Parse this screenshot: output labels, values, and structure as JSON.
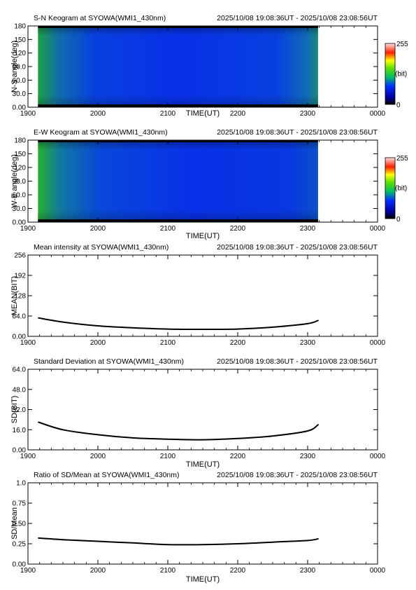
{
  "chart_data": [
    {
      "type": "heatmap",
      "title": "S-N Keogram at SYOWA(WMI1_430nm)",
      "time_range": "2025/10/08 19:08:36UT - 2025/10/08 23:08:56UT",
      "xlabel": "TIME(UT)",
      "ylabel": "N-S angle(deg)",
      "x_ticks": [
        "1900",
        "2000",
        "2100",
        "2200",
        "2300",
        "0000"
      ],
      "y_ticks": [
        "0.00",
        "30.0",
        "60.0",
        "90.0",
        "120",
        "150",
        "180"
      ],
      "ylim": [
        0,
        180
      ],
      "colorbar": {
        "max_label": "255",
        "unit_label": "(bit)",
        "min_label": "0"
      },
      "data_coverage_hours": [
        19.143,
        23.149
      ]
    },
    {
      "type": "heatmap",
      "title": "E-W Keogram at SYOWA(WMI1_430nm)",
      "time_range": "2025/10/08 19:08:36UT - 2025/10/08 23:08:56UT",
      "xlabel": "TIME(UT)",
      "ylabel": "W-E angle(deg)",
      "x_ticks": [
        "1900",
        "2000",
        "2100",
        "2200",
        "2300",
        "0000"
      ],
      "y_ticks": [
        "0.00",
        "30.0",
        "60.0",
        "90.0",
        "120",
        "150",
        "180"
      ],
      "ylim": [
        0,
        180
      ],
      "colorbar": {
        "max_label": "255",
        "unit_label": "(bit)",
        "min_label": "0"
      },
      "data_coverage_hours": [
        19.143,
        23.149
      ]
    },
    {
      "type": "line",
      "title": "Mean intensity at SYOWA(WMI1_430nm)",
      "time_range": "2025/10/08 19:08:36UT - 2025/10/08 23:08:56UT",
      "xlabel": "",
      "ylabel": "MEAN(BIT)",
      "x_ticks": [
        "1900",
        "2000",
        "2100",
        "2200",
        "2300",
        "0000"
      ],
      "y_ticks": [
        "0.00",
        "64.0",
        "128",
        "192",
        "256"
      ],
      "xlim": [
        19,
        24
      ],
      "ylim": [
        0,
        256
      ],
      "x": [
        19.15,
        19.5,
        20.0,
        20.5,
        21.0,
        21.5,
        22.0,
        22.5,
        23.0,
        23.15
      ],
      "y": [
        58,
        45,
        33,
        27,
        23,
        22,
        23,
        29,
        40,
        50
      ]
    },
    {
      "type": "line",
      "title": "Standard Deviation at SYOWA(WMI1_430nm)",
      "time_range": "2025/10/08 19:08:36UT - 2025/10/08 23:08:56UT",
      "xlabel": "TIME(UT)",
      "ylabel": "SD(BIT)",
      "x_ticks": [
        "1900",
        "2000",
        "2100",
        "2200",
        "2300",
        "0000"
      ],
      "y_ticks": [
        "0.00",
        "16.0",
        "32.0",
        "48.0",
        "64.0"
      ],
      "xlim": [
        19,
        24
      ],
      "ylim": [
        0,
        64
      ],
      "x": [
        19.15,
        19.5,
        20.0,
        20.5,
        21.0,
        21.5,
        22.0,
        22.5,
        23.0,
        23.15
      ],
      "y": [
        22,
        16,
        12,
        9.5,
        8.5,
        8,
        9,
        11,
        15,
        20
      ]
    },
    {
      "type": "line",
      "title": "Ratio of SD/Mean at SYOWA(WMI1_430nm)",
      "time_range": "2025/10/08 19:08:36UT - 2025/10/08 23:08:56UT",
      "xlabel": "TIME(UT)",
      "ylabel": "SD/Mean",
      "x_ticks": [
        "1900",
        "2000",
        "2100",
        "2200",
        "2300",
        "0000"
      ],
      "y_ticks": [
        "0.00",
        "0.25",
        "0.50",
        "0.75",
        "1.0"
      ],
      "xlim": [
        19,
        24
      ],
      "ylim": [
        0,
        1
      ],
      "x": [
        19.15,
        19.5,
        20.0,
        20.5,
        21.0,
        21.5,
        22.0,
        22.5,
        23.0,
        23.15
      ],
      "y": [
        0.32,
        0.3,
        0.28,
        0.26,
        0.24,
        0.24,
        0.25,
        0.27,
        0.29,
        0.31
      ]
    }
  ]
}
